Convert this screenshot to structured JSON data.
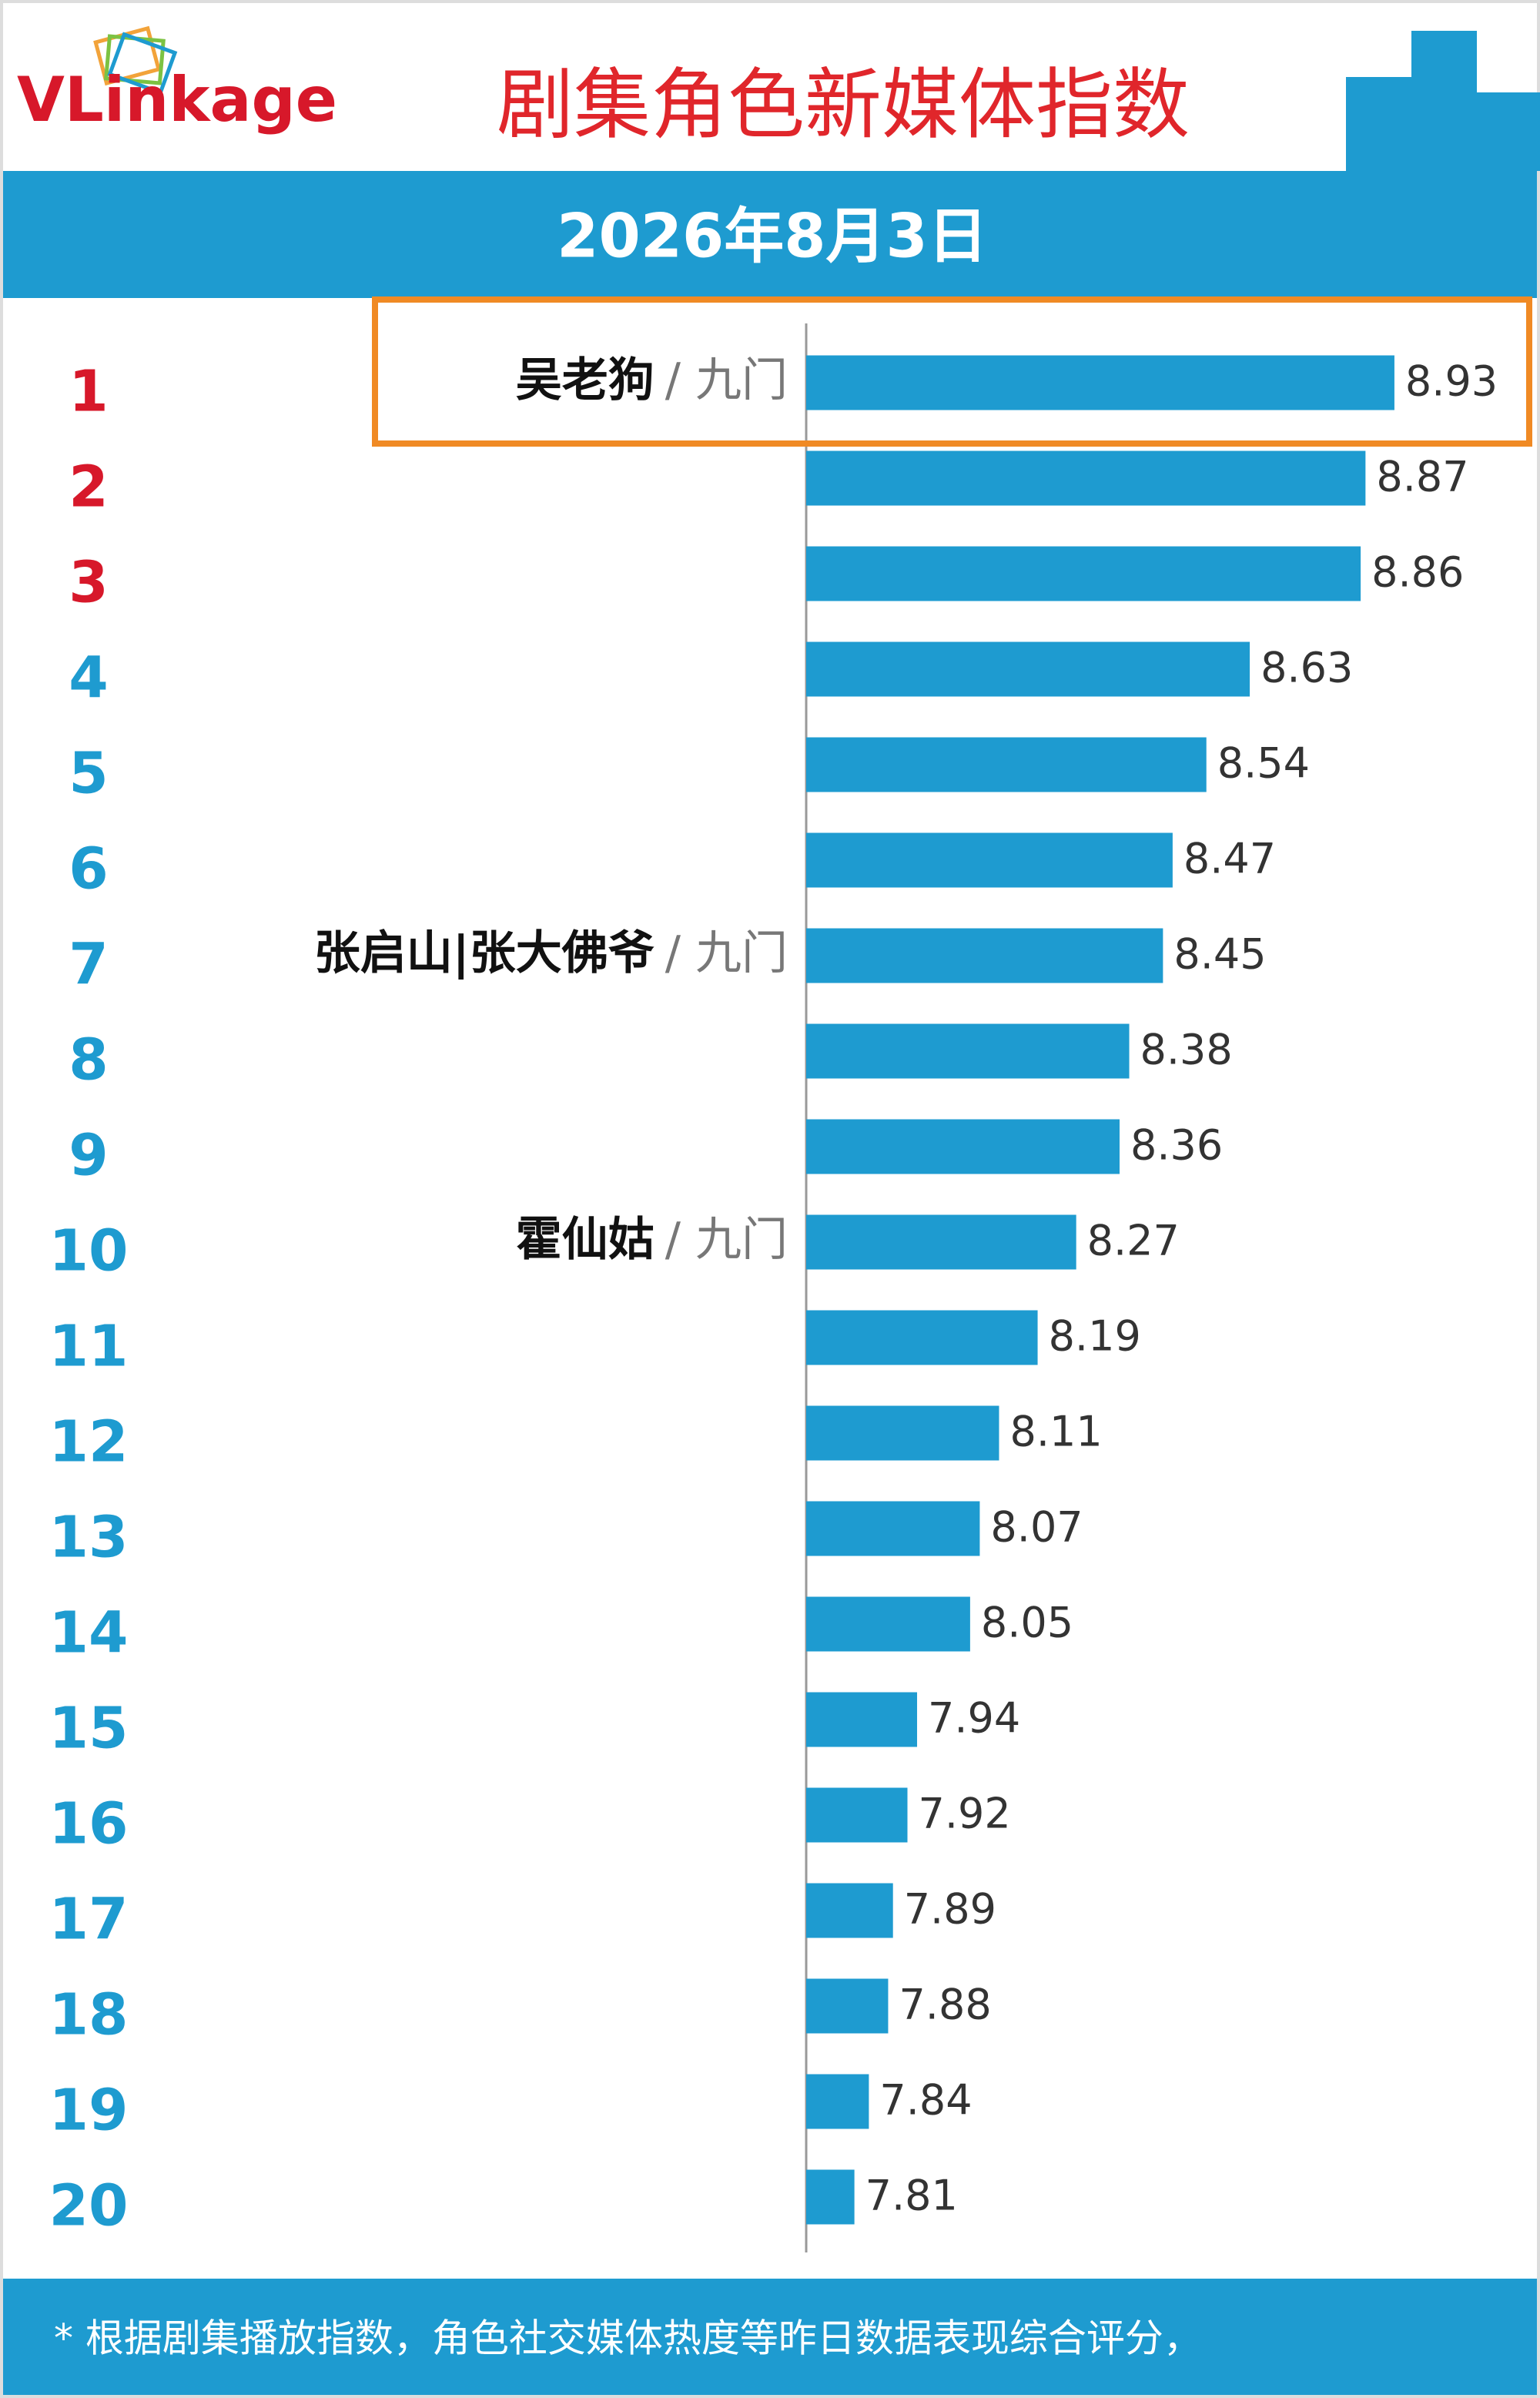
{
  "logo": "VLinkage",
  "chart_data": {
    "type": "bar",
    "title": "剧集角色新媒体指数",
    "subtitle": "2026年8月3日",
    "ranks": [
      1,
      2,
      3,
      4,
      5,
      6,
      7,
      8,
      9,
      10,
      11,
      12,
      13,
      14,
      15,
      16,
      17,
      18,
      19,
      20
    ],
    "categories": [
      "吴老狗",
      null,
      null,
      null,
      null,
      null,
      "张启山|张大佛爷",
      null,
      null,
      "霍仙姑",
      null,
      null,
      null,
      null,
      null,
      null,
      null,
      null,
      null,
      null
    ],
    "category_groups": [
      "/ 九门",
      null,
      null,
      null,
      null,
      null,
      "/ 九门",
      null,
      null,
      "/ 九门",
      null,
      null,
      null,
      null,
      null,
      null,
      null,
      null,
      null,
      null
    ],
    "values": [
      8.93,
      8.87,
      8.86,
      8.63,
      8.54,
      8.47,
      8.45,
      8.38,
      8.36,
      8.27,
      8.19,
      8.11,
      8.07,
      8.05,
      7.94,
      7.92,
      7.89,
      7.88,
      7.84,
      7.81
    ],
    "color": "#1e9bd0",
    "xlim": [
      7.71,
      9.2
    ],
    "note": "* 根据剧集播放指数，角色社交媒体热度等昨日数据表现综合评分，"
  }
}
